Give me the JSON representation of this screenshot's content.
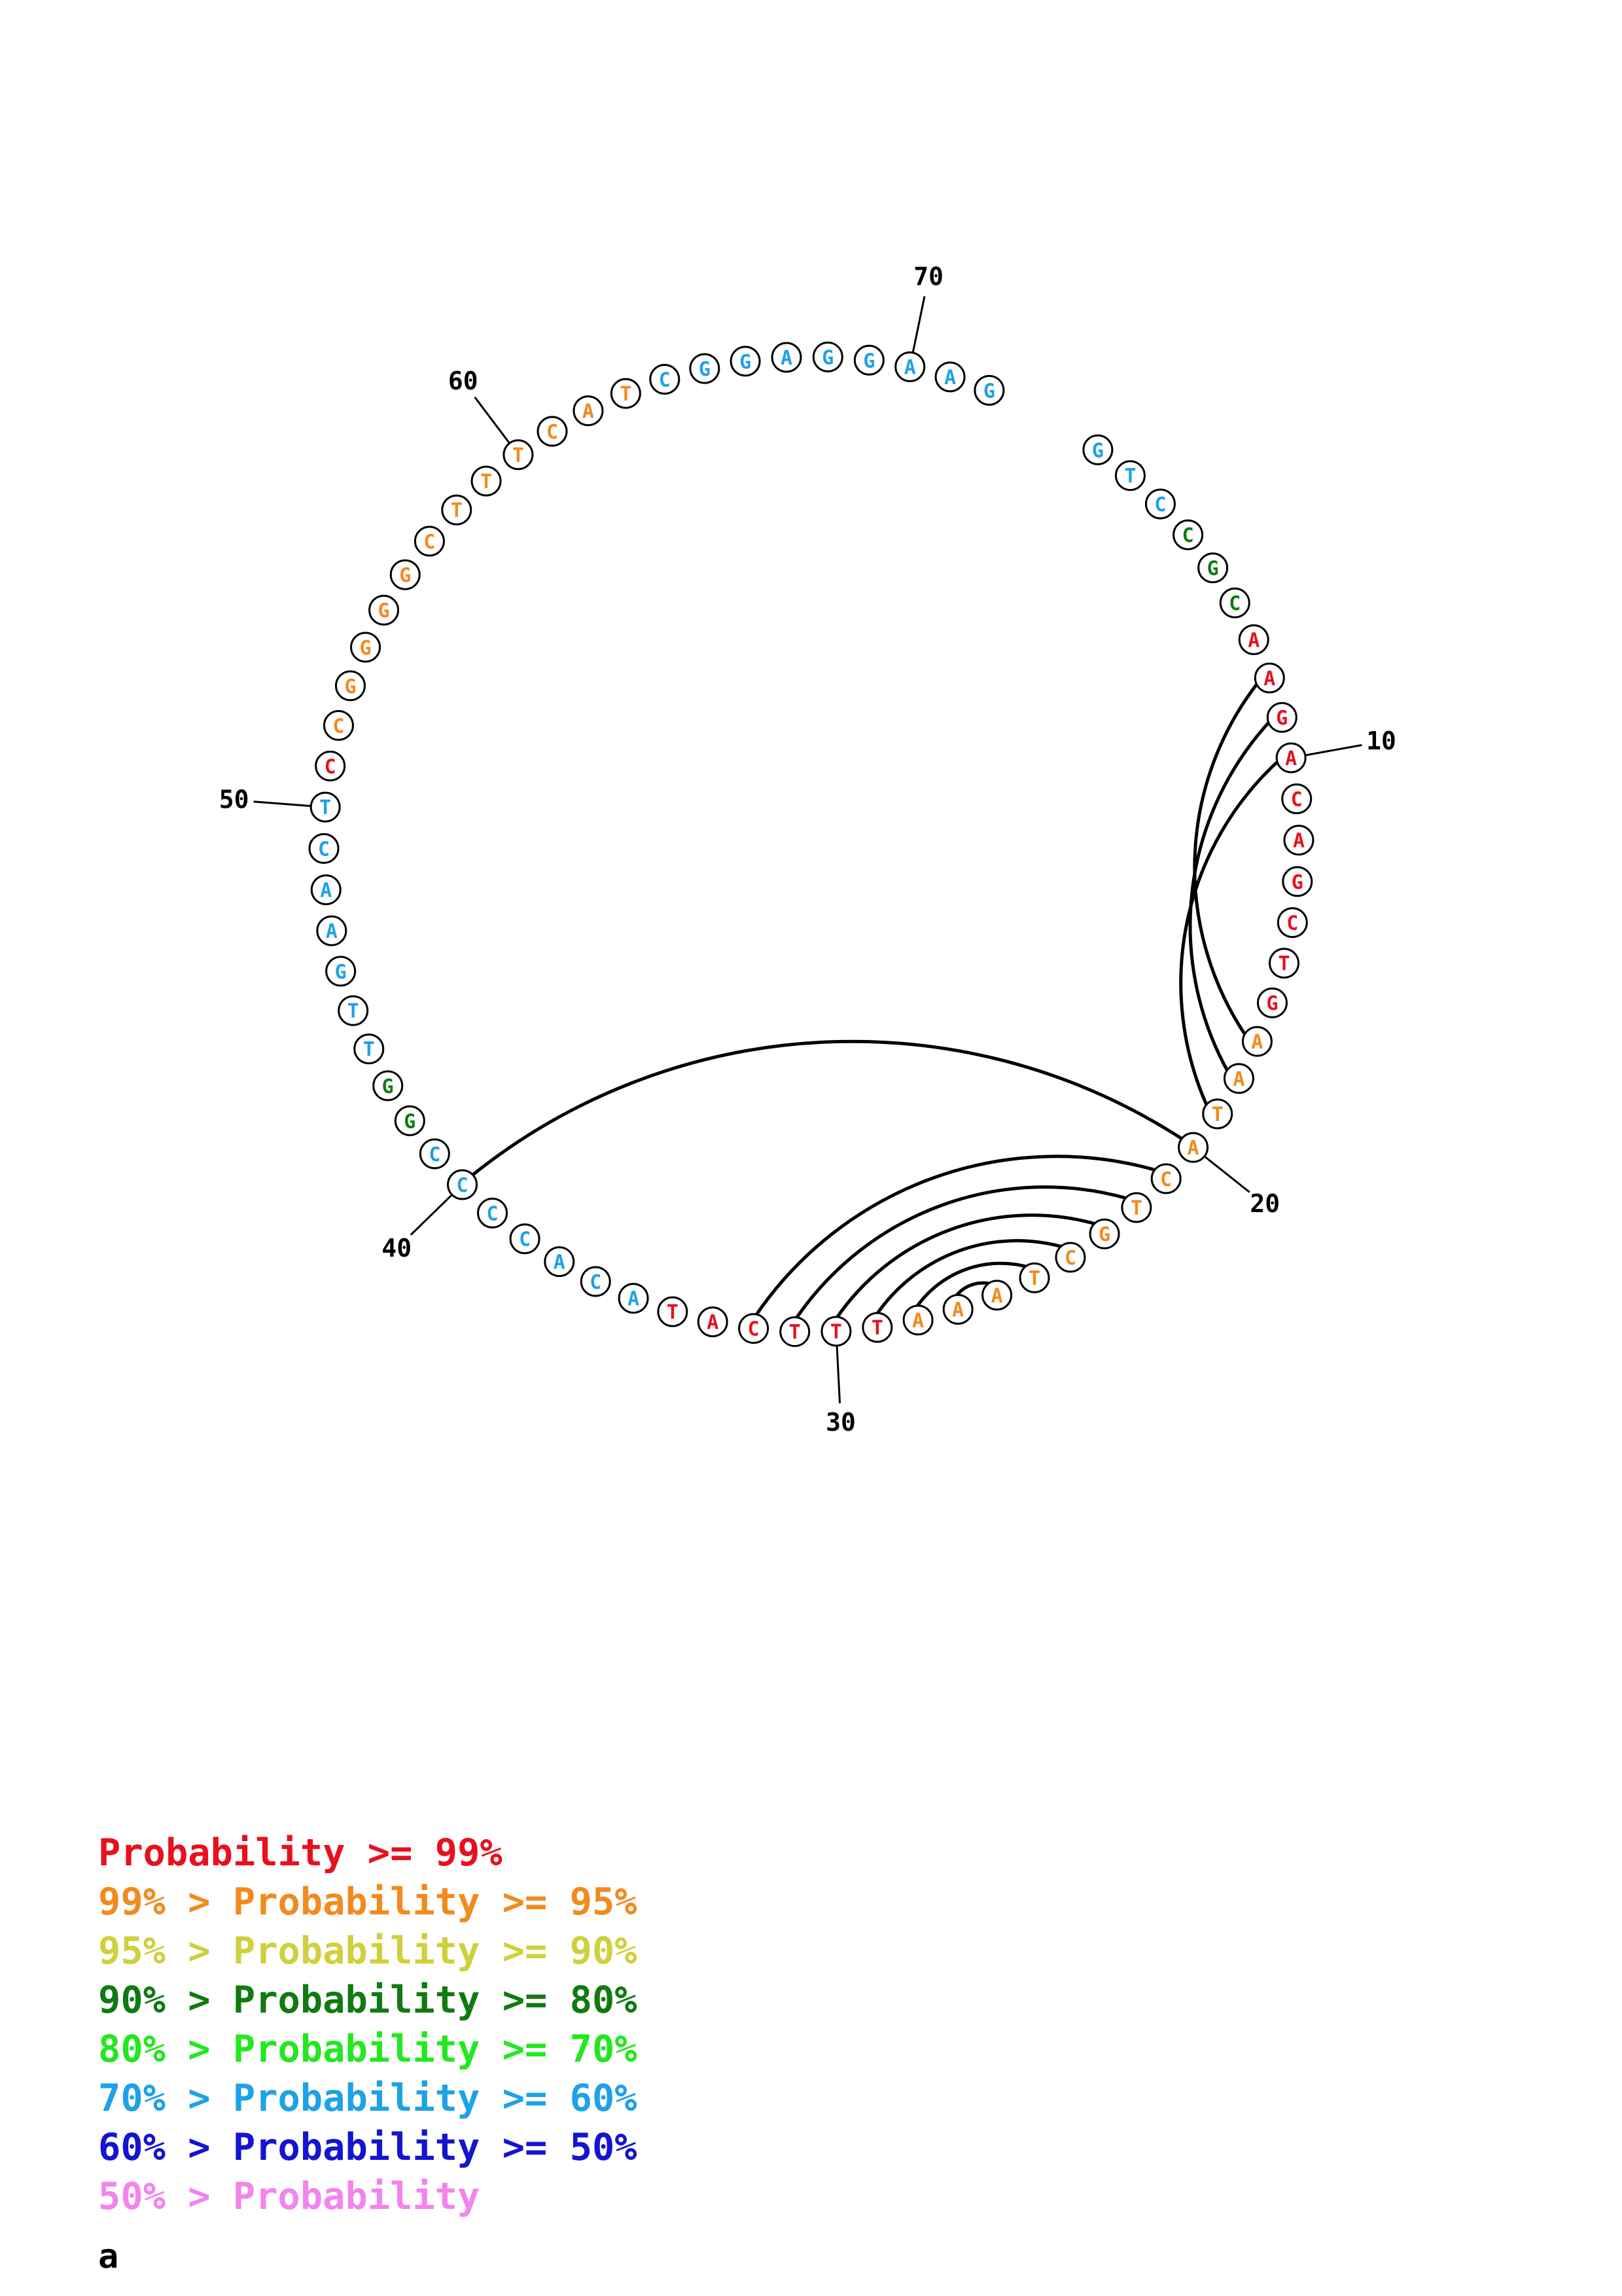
{
  "sequence": [
    "G",
    "T",
    "C",
    "C",
    "G",
    "C",
    "A",
    "A",
    "G",
    "A",
    "C",
    "A",
    "G",
    "C",
    "T",
    "G",
    "A",
    "A",
    "T",
    "A",
    "C",
    "T",
    "G",
    "C",
    "T",
    "A",
    "A",
    "A",
    "T",
    "T",
    "T",
    "C",
    "A",
    "T",
    "A",
    "C",
    "A",
    "C",
    "C",
    "C",
    "C",
    "G",
    "G",
    "T",
    "T",
    "G",
    "A",
    "A",
    "C",
    "T",
    "C",
    "C",
    "G",
    "G",
    "G",
    "G",
    "C",
    "T",
    "T",
    "T",
    "C",
    "A",
    "T",
    "C",
    "G",
    "G",
    "A",
    "G",
    "G",
    "A",
    "A",
    "G"
  ],
  "probability_classes": [
    "r",
    "r",
    "r",
    "o",
    "o",
    "o",
    "o",
    "o",
    "o",
    "o",
    "o",
    "o",
    "o",
    "o",
    "o",
    "o",
    "r",
    "r",
    "o",
    "p",
    "p",
    "p",
    "p",
    "p",
    "p",
    "p",
    "g",
    "g",
    "g",
    "g",
    "c",
    "c",
    "c",
    "c",
    "c",
    "c",
    "c",
    "d",
    "d",
    "d",
    "d",
    "o",
    "o",
    "o",
    "o",
    "o",
    "o",
    "o",
    "o",
    "o",
    "o",
    "o",
    "r",
    "r",
    "r",
    "r",
    "r",
    "o",
    "o",
    "o",
    "o",
    "o",
    "o",
    "c",
    "c",
    "c",
    "c",
    "c",
    "c",
    "c",
    "c",
    "r"
  ],
  "base_classes": [
    "c",
    "c",
    "c",
    "d",
    "d",
    "d",
    "r",
    "r",
    "r",
    "r",
    "r",
    "r",
    "r",
    "r",
    "r",
    "r",
    "o",
    "o",
    "o",
    "o",
    "o",
    "o",
    "o",
    "o",
    "o",
    "o",
    "o",
    "o",
    "r",
    "r",
    "r",
    "r",
    "r",
    "r",
    "c",
    "c",
    "c",
    "c",
    "c",
    "c",
    "c",
    "d",
    "d",
    "c",
    "c",
    "c",
    "c",
    "c",
    "c",
    "c",
    "r",
    "o",
    "o",
    "o",
    "o",
    "o",
    "o",
    "o",
    "o",
    "o",
    "o",
    "o",
    "o",
    "c",
    "c",
    "c",
    "c",
    "c",
    "c",
    "c",
    "c",
    "c"
  ],
  "position_labels": [
    "10",
    "20",
    "30",
    "40",
    "50",
    "60",
    "70"
  ],
  "legend": [
    {
      "lhs": "",
      "rhs": "Probability >= 99%",
      "color": "#e8101e"
    },
    {
      "lhs": "99% > ",
      "rhs": "Probability >= 95%",
      "color": "#f28a1e"
    },
    {
      "lhs": "95% > ",
      "rhs": "Probability >= 90%",
      "color": "#cfd03c"
    },
    {
      "lhs": "90% > ",
      "rhs": "Probability >= 80%",
      "color": "#117a12"
    },
    {
      "lhs": "80% > ",
      "rhs": "Probability >= 70%",
      "color": "#22e81f"
    },
    {
      "lhs": "70% > ",
      "rhs": "Probability >= 60%",
      "color": "#1ea2e6"
    },
    {
      "lhs": "60% > ",
      "rhs": "Probability >= 50%",
      "color": "#1414d2"
    },
    {
      "lhs": "50% > ",
      "rhs": "Probability",
      "color": "#f284ec"
    }
  ],
  "caption": "a",
  "class_colors": {
    "r": "#e8101e",
    "o": "#f28a1e",
    "y": "#cfd03c",
    "d": "#117a12",
    "g": "#22e81f",
    "c": "#1ea2e6",
    "b": "#1414d2",
    "p": "#f284ec"
  },
  "pairs": [
    [
      9,
      18
    ],
    [
      8,
      17
    ],
    [
      7,
      16
    ],
    [
      19,
      39
    ],
    [
      20,
      31
    ],
    [
      21,
      30
    ],
    [
      22,
      29
    ],
    [
      23,
      28
    ],
    [
      24,
      27
    ],
    [
      25,
      26
    ]
  ]
}
